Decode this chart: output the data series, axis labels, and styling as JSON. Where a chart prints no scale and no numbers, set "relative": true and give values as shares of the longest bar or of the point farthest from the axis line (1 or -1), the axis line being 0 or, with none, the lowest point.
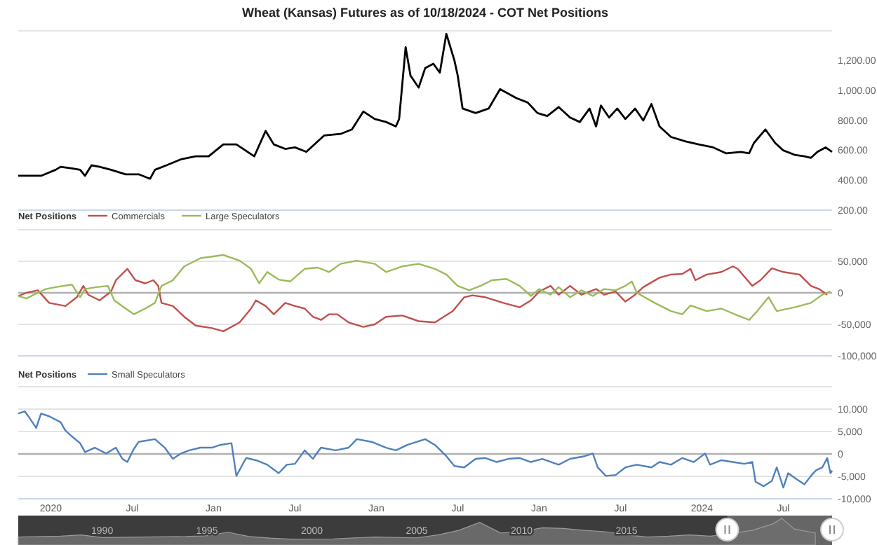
{
  "chart_data": [
    {
      "type": "line",
      "title": "Wheat (Kansas) Futures as of 10/18/2024 - COT Net Positions",
      "xlim": [
        2019.8,
        2024.8
      ],
      "ylim": [
        200,
        1400
      ],
      "tick_labels": "y",
      "yticks": [
        {
          "value": 200,
          "label": "200.00"
        },
        {
          "value": 400,
          "label": "400.00"
        },
        {
          "value": 600,
          "label": "600.00"
        },
        {
          "value": 800,
          "label": "800.00"
        },
        {
          "value": 1000,
          "label": "1,000.00"
        },
        {
          "value": 1200,
          "label": "1,200.00"
        }
      ],
      "series": [
        {
          "color": "#000000",
          "x": [
            2019.8,
            2019.94,
            2020.03,
            2020.06,
            2020.13,
            2020.18,
            2020.21,
            2020.25,
            2020.3,
            2020.37,
            2020.46,
            2020.54,
            2020.61,
            2020.64,
            2020.71,
            2020.8,
            2020.89,
            2020.97,
            2021.06,
            2021.14,
            2021.25,
            2021.32,
            2021.37,
            2021.44,
            2021.5,
            2021.57,
            2021.68,
            2021.78,
            2021.85,
            2021.92,
            2021.99,
            2022.06,
            2022.12,
            2022.14,
            2022.18,
            2022.21,
            2022.26,
            2022.3,
            2022.35,
            2022.39,
            2022.43,
            2022.48,
            2022.5,
            2022.53,
            2022.61,
            2022.69,
            2022.76,
            2022.86,
            2022.93,
            2022.99,
            2023.05,
            2023.12,
            2023.19,
            2023.25,
            2023.31,
            2023.35,
            2023.38,
            2023.43,
            2023.48,
            2023.53,
            2023.59,
            2023.64,
            2023.69,
            2023.74,
            2023.81,
            2023.9,
            2023.98,
            2024.07,
            2024.15,
            2024.24,
            2024.29,
            2024.32,
            2024.39,
            2024.45,
            2024.5,
            2024.57,
            2024.63,
            2024.67,
            2024.71,
            2024.76,
            2024.8
          ],
          "values": [
            430,
            430,
            470,
            490,
            480,
            470,
            430,
            500,
            490,
            470,
            440,
            440,
            410,
            470,
            500,
            540,
            560,
            560,
            640,
            640,
            560,
            730,
            640,
            610,
            620,
            590,
            700,
            710,
            740,
            860,
            810,
            790,
            760,
            810,
            1290,
            1100,
            1020,
            1150,
            1180,
            1120,
            1380,
            1200,
            1100,
            880,
            850,
            880,
            1010,
            950,
            920,
            850,
            830,
            890,
            820,
            790,
            880,
            760,
            900,
            820,
            880,
            810,
            880,
            800,
            910,
            760,
            690,
            660,
            640,
            620,
            580,
            590,
            580,
            650,
            740,
            650,
            600,
            570,
            560,
            550,
            590,
            620,
            590
          ]
        }
      ]
    },
    {
      "type": "line",
      "legend_title": "Net Positions",
      "legend": "top left",
      "grid": "y",
      "xlim": [
        2019.8,
        2024.8
      ],
      "ylim": [
        -100000,
        100000
      ],
      "tick_labels": "y",
      "yticks": [
        {
          "value": -100000,
          "label": "-100,000"
        },
        {
          "value": -50000,
          "label": "-50,000"
        },
        0,
        {
          "value": 50000,
          "label": "50,000"
        },
        {
          "value": 100000,
          "label": null
        }
      ],
      "ref_lines": [
        {
          "axis": "y",
          "value": 0,
          "color": "#b0b0b0"
        }
      ],
      "series": [
        {
          "name": "Commercials",
          "color": "#c0504d",
          "x": [
            2019.8,
            2019.85,
            2019.92,
            2019.99,
            2020.09,
            2020.16,
            2020.2,
            2020.23,
            2020.3,
            2020.37,
            2020.4,
            2020.47,
            2020.52,
            2020.58,
            2020.63,
            2020.66,
            2020.68,
            2020.75,
            2020.82,
            2020.89,
            2020.99,
            2021.06,
            2021.16,
            2021.23,
            2021.26,
            2021.32,
            2021.37,
            2021.44,
            2021.5,
            2021.56,
            2021.61,
            2021.66,
            2021.71,
            2021.76,
            2021.83,
            2021.92,
            2021.99,
            2022.06,
            2022.16,
            2022.26,
            2022.36,
            2022.47,
            2022.54,
            2022.59,
            2022.67,
            2022.78,
            2022.88,
            2022.95,
            2023.0,
            2023.07,
            2023.12,
            2023.19,
            2023.26,
            2023.35,
            2023.4,
            2023.47,
            2023.53,
            2023.59,
            2023.64,
            2023.74,
            2023.81,
            2023.88,
            2023.93,
            2023.96,
            2024.03,
            2024.12,
            2024.19,
            2024.22,
            2024.31,
            2024.36,
            2024.43,
            2024.5,
            2024.6,
            2024.67,
            2024.72,
            2024.77
          ],
          "values": [
            -5000,
            0,
            4000,
            -16000,
            -21000,
            -7000,
            11000,
            -3000,
            -12000,
            2000,
            20000,
            38000,
            20000,
            15000,
            20000,
            11000,
            -16000,
            -21000,
            -38000,
            -52000,
            -56000,
            -61000,
            -47000,
            -25000,
            -12000,
            -21000,
            -34000,
            -16000,
            -21000,
            -25000,
            -38000,
            -43000,
            -34000,
            -34000,
            -47000,
            -54000,
            -50000,
            -38000,
            -36000,
            -45000,
            -47000,
            -29000,
            -7000,
            -4000,
            -7000,
            -16000,
            -23000,
            -12000,
            2000,
            11000,
            -3000,
            11000,
            -3000,
            6000,
            -3000,
            2000,
            -14000,
            -3000,
            9000,
            24000,
            29000,
            30000,
            38000,
            20000,
            29000,
            33000,
            42000,
            38000,
            11000,
            20000,
            39000,
            33000,
            29000,
            11000,
            6000,
            -3000
          ]
        },
        {
          "name": "Large Speculators",
          "color": "#9bbb59",
          "x": [
            2019.8,
            2019.85,
            2019.92,
            2019.97,
            2020.03,
            2020.13,
            2020.18,
            2020.21,
            2020.28,
            2020.35,
            2020.39,
            2020.46,
            2020.51,
            2020.58,
            2020.64,
            2020.68,
            2020.75,
            2020.82,
            2020.92,
            2021.06,
            2021.16,
            2021.23,
            2021.28,
            2021.33,
            2021.4,
            2021.47,
            2021.56,
            2021.64,
            2021.71,
            2021.78,
            2021.88,
            2021.99,
            2022.06,
            2022.16,
            2022.26,
            2022.36,
            2022.43,
            2022.5,
            2022.57,
            2022.64,
            2022.71,
            2022.8,
            2022.88,
            2022.95,
            2023.0,
            2023.07,
            2023.12,
            2023.19,
            2023.26,
            2023.33,
            2023.4,
            2023.47,
            2023.53,
            2023.57,
            2023.6,
            2023.71,
            2023.81,
            2023.88,
            2023.93,
            2024.03,
            2024.12,
            2024.22,
            2024.29,
            2024.34,
            2024.41,
            2024.46,
            2024.57,
            2024.67,
            2024.74,
            2024.79
          ],
          "values": [
            -5000,
            -9000,
            0,
            6000,
            9000,
            13000,
            -7000,
            6000,
            9000,
            11000,
            -12000,
            -25000,
            -34000,
            -25000,
            -16000,
            11000,
            20000,
            42000,
            55000,
            60000,
            51000,
            38000,
            15000,
            33000,
            21000,
            18000,
            38000,
            40000,
            33000,
            46000,
            51000,
            46000,
            33000,
            42000,
            46000,
            38000,
            29000,
            11000,
            4000,
            11000,
            20000,
            22000,
            11000,
            -5000,
            6000,
            -3000,
            9000,
            -7000,
            4000,
            -5000,
            6000,
            4000,
            11000,
            18000,
            0,
            -16000,
            -29000,
            -34000,
            -20000,
            -29000,
            -25000,
            -36000,
            -43000,
            -29000,
            -7000,
            -29000,
            -23000,
            -16000,
            -3000,
            2000
          ]
        }
      ]
    },
    {
      "type": "line",
      "legend_title": "Net Positions",
      "legend": "top left",
      "grid": "y",
      "xlim": [
        2019.8,
        2024.8
      ],
      "ylim": [
        -10000,
        15000
      ],
      "xticks": [
        {
          "value": 2020,
          "label": "2020"
        },
        {
          "value": 2020.5,
          "label": "Jul"
        },
        {
          "value": 2021,
          "label": "Jan"
        },
        {
          "value": 2021.5,
          "label": "Jul"
        },
        {
          "value": 2022,
          "label": "Jan"
        },
        {
          "value": 2022.5,
          "label": "Jul"
        },
        {
          "value": 2023,
          "label": "Jan"
        },
        {
          "value": 2023.5,
          "label": "Jul"
        },
        {
          "value": 2024,
          "label": "2024"
        },
        {
          "value": 2024.5,
          "label": "Jul"
        }
      ],
      "yticks": [
        {
          "value": -10000,
          "label": "-10,000"
        },
        {
          "value": -5000,
          "label": "-5,000"
        },
        0,
        {
          "value": 5000,
          "label": "5,000"
        },
        {
          "value": 10000,
          "label": "10,000"
        },
        {
          "value": 15000,
          "label": null
        }
      ],
      "ref_lines": [
        {
          "axis": "y",
          "value": 0,
          "color": "#b0b0b0"
        }
      ],
      "series": [
        {
          "name": "Small Speculators",
          "color": "#4f81bd",
          "x": [
            2019.8,
            2019.84,
            2019.87,
            2019.91,
            2019.94,
            2019.99,
            2020.06,
            2020.09,
            2020.13,
            2020.18,
            2020.21,
            2020.27,
            2020.34,
            2020.4,
            2020.44,
            2020.47,
            2020.51,
            2020.54,
            2020.64,
            2020.7,
            2020.75,
            2020.8,
            2020.85,
            2020.92,
            2020.99,
            2021.04,
            2021.11,
            2021.14,
            2021.2,
            2021.26,
            2021.33,
            2021.4,
            2021.45,
            2021.5,
            2021.56,
            2021.61,
            2021.66,
            2021.75,
            2021.83,
            2021.88,
            2021.97,
            2022.06,
            2022.12,
            2022.19,
            2022.3,
            2022.36,
            2022.43,
            2022.48,
            2022.54,
            2022.61,
            2022.67,
            2022.74,
            2022.81,
            2022.88,
            2022.95,
            2023.02,
            2023.12,
            2023.19,
            2023.28,
            2023.33,
            2023.36,
            2023.41,
            2023.47,
            2023.53,
            2023.6,
            2023.69,
            2023.74,
            2023.81,
            2023.88,
            2023.95,
            2024.02,
            2024.05,
            2024.12,
            2024.19,
            2024.26,
            2024.31,
            2024.33,
            2024.38,
            2024.43,
            2024.46,
            2024.5,
            2024.53,
            2024.58,
            2024.63,
            2024.67,
            2024.7,
            2024.74,
            2024.77,
            2024.79,
            2024.8
          ],
          "values": [
            9000,
            9500,
            8000,
            5800,
            9000,
            8400,
            7100,
            5200,
            3900,
            2400,
            400,
            1400,
            100,
            1400,
            -1100,
            -1800,
            1100,
            2700,
            3300,
            1400,
            -1100,
            100,
            800,
            1400,
            1400,
            2000,
            2400,
            -4900,
            -900,
            -1400,
            -2400,
            -4300,
            -2400,
            -2200,
            800,
            -1100,
            1400,
            800,
            1400,
            3300,
            2700,
            1400,
            800,
            2000,
            3300,
            2000,
            -500,
            -2700,
            -3000,
            -1100,
            -900,
            -1800,
            -1100,
            -900,
            -1800,
            -1100,
            -2400,
            -1100,
            -500,
            100,
            -3000,
            -4900,
            -4700,
            -3000,
            -2400,
            -3000,
            -1800,
            -2400,
            -900,
            -1800,
            100,
            -2400,
            -1400,
            -1800,
            -2200,
            -1800,
            -6200,
            -7200,
            -6000,
            -3000,
            -7500,
            -4300,
            -5600,
            -6800,
            -4900,
            -3700,
            -3000,
            -900,
            -4300,
            -3700
          ]
        }
      ]
    },
    {
      "type": "area",
      "relative": true,
      "tick_labels": "x",
      "xlim": [
        1986,
        2024.8
      ],
      "xticks": [
        1990,
        1995,
        2000,
        2005,
        2010,
        2015
      ],
      "bands": [
        {
          "axis": "x",
          "from": 2019.8,
          "to": 2024.8,
          "color": "#9a9a9a"
        }
      ],
      "series": [
        {
          "color": "#6e6e6e",
          "x": [
            1986,
            1988,
            1989,
            1990,
            1992,
            1994,
            1995,
            1996,
            1997,
            1998,
            1999,
            2001,
            2003,
            2005,
            2006,
            2007,
            2008,
            2009,
            2010,
            2011,
            2012,
            2013,
            2014,
            2015,
            2016,
            2017,
            2018,
            2019,
            2021,
            2022,
            2022.4,
            2023,
            2024
          ],
          "values": [
            0.3,
            0.33,
            0.38,
            0.28,
            0.3,
            0.32,
            0.35,
            0.48,
            0.32,
            0.26,
            0.22,
            0.23,
            0.3,
            0.27,
            0.38,
            0.55,
            0.85,
            0.45,
            0.5,
            0.65,
            0.62,
            0.55,
            0.5,
            0.38,
            0.3,
            0.33,
            0.38,
            0.33,
            0.55,
            0.8,
            1,
            0.6,
            0.45
          ]
        }
      ]
    }
  ]
}
